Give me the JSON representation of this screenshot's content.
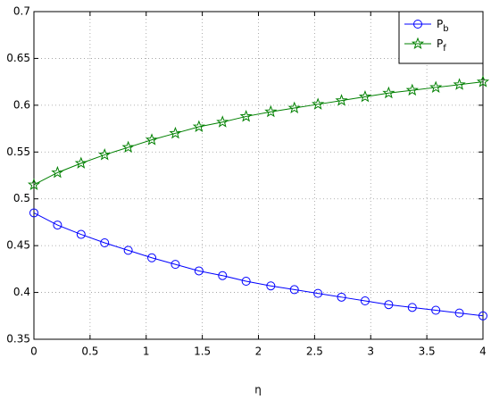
{
  "chart_data": {
    "type": "line",
    "x_label": "η",
    "x": [
      0,
      0.21,
      0.42,
      0.63,
      0.84,
      1.05,
      1.26,
      1.47,
      1.68,
      1.89,
      2.11,
      2.32,
      2.53,
      2.74,
      2.95,
      3.16,
      3.37,
      3.58,
      3.79,
      4
    ],
    "series": [
      {
        "name": "Pb",
        "color": "#0000ff",
        "marker": "circle",
        "values": [
          0.485,
          0.472,
          0.462,
          0.453,
          0.445,
          0.437,
          0.43,
          0.423,
          0.418,
          0.412,
          0.407,
          0.403,
          0.399,
          0.395,
          0.391,
          0.387,
          0.384,
          0.381,
          0.378,
          0.375
        ]
      },
      {
        "name": "Pf",
        "color": "#008000",
        "marker": "star",
        "values": [
          0.515,
          0.528,
          0.538,
          0.547,
          0.555,
          0.563,
          0.57,
          0.577,
          0.582,
          0.588,
          0.593,
          0.597,
          0.601,
          0.605,
          0.609,
          0.613,
          0.616,
          0.619,
          0.622,
          0.625
        ]
      }
    ],
    "xlim": [
      0,
      4
    ],
    "xticks": [
      0,
      0.5,
      1,
      1.5,
      2,
      2.5,
      3,
      3.5,
      4
    ],
    "ylim": [
      0.35,
      0.7
    ],
    "yticks": [
      0.35,
      0.4,
      0.45,
      0.5,
      0.55,
      0.6,
      0.65,
      0.7
    ],
    "grid": true,
    "legend": "top-right"
  }
}
